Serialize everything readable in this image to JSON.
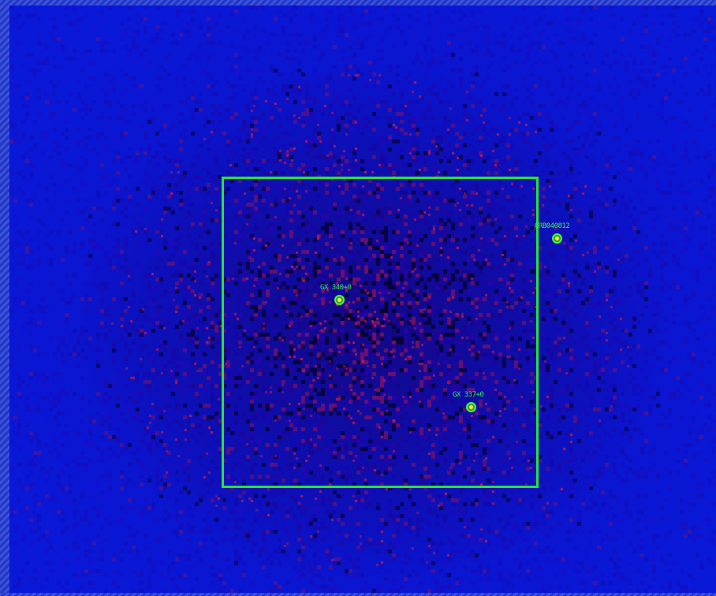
{
  "image": {
    "sources": [
      {
        "id": "gx340",
        "label": "GX 340+0"
      },
      {
        "id": "grb",
        "label": "GRB040812"
      },
      {
        "id": "gx337",
        "label": "GX 337+0"
      }
    ],
    "colors": {
      "background": "#0b14cc",
      "box": "#22e638",
      "label": "#38e860",
      "hot_pixels": "#c0204a"
    }
  }
}
